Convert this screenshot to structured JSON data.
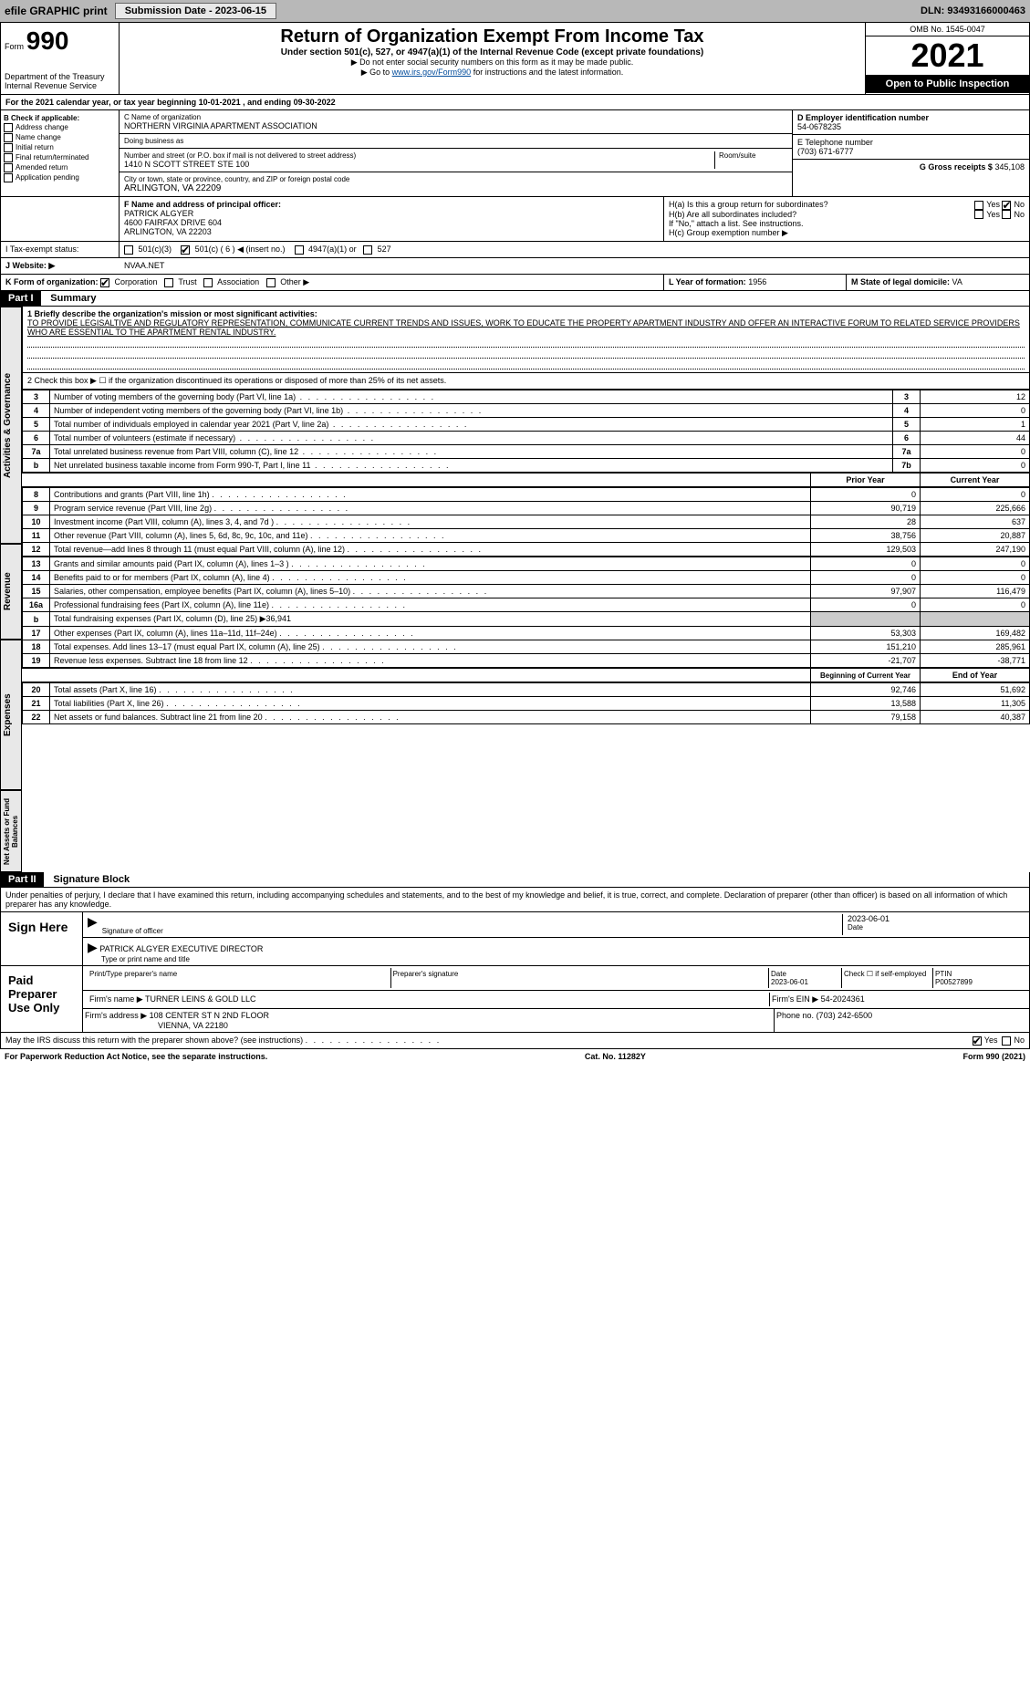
{
  "topbar": {
    "efile": "efile GRAPHIC print",
    "submission_label": "Submission Date - 2023-06-15",
    "dln": "DLN: 93493166000463"
  },
  "header": {
    "form_prefix": "Form",
    "form_number": "990",
    "title": "Return of Organization Exempt From Income Tax",
    "subtitle": "Under section 501(c), 527, or 4947(a)(1) of the Internal Revenue Code (except private foundations)",
    "note1": "▶ Do not enter social security numbers on this form as it may be made public.",
    "note2_prefix": "▶ Go to ",
    "note2_link": "www.irs.gov/Form990",
    "note2_suffix": " for instructions and the latest information.",
    "dept": "Department of the Treasury",
    "irs": "Internal Revenue Service",
    "omb": "OMB No. 1545-0047",
    "year": "2021",
    "open": "Open to Public Inspection"
  },
  "line_a": "For the 2021 calendar year, or tax year beginning 10-01-2021    , and ending 09-30-2022",
  "block_b": {
    "header": "B Check if applicable:",
    "items": [
      "Address change",
      "Name change",
      "Initial return",
      "Final return/terminated",
      "Amended return",
      "Application pending"
    ]
  },
  "block_c": {
    "name_label": "C Name of organization",
    "name": "NORTHERN VIRGINIA APARTMENT ASSOCIATION",
    "dba_label": "Doing business as",
    "dba": "",
    "addr_label": "Number and street (or P.O. box if mail is not delivered to street address)",
    "room_label": "Room/suite",
    "addr": "1410 N SCOTT STREET STE 100",
    "city_label": "City or town, state or province, country, and ZIP or foreign postal code",
    "city": "ARLINGTON, VA  22209"
  },
  "block_d": {
    "label": "D Employer identification number",
    "value": "54-0678235"
  },
  "block_e": {
    "label": "E Telephone number",
    "value": "(703) 671-6777"
  },
  "block_g": {
    "label": "G Gross receipts $",
    "value": "345,108"
  },
  "block_f": {
    "label": "F Name and address of principal officer:",
    "name": "PATRICK ALGYER",
    "addr1": "4600 FAIRFAX DRIVE 604",
    "addr2": "ARLINGTON, VA  22203"
  },
  "block_h": {
    "a_label": "H(a)  Is this a group return for subordinates?",
    "yes": "Yes",
    "no": "No",
    "b_label": "H(b)  Are all subordinates included?",
    "b_note": "If \"No,\" attach a list. See instructions.",
    "c_label": "H(c)  Group exemption number ▶"
  },
  "line_i": {
    "label": "I   Tax-exempt status:",
    "opts": [
      "501(c)(3)",
      "501(c) ( 6 ) ◀ (insert no.)",
      "4947(a)(1) or",
      "527"
    ]
  },
  "line_j": {
    "label": "J   Website: ▶",
    "value": "NVAA.NET"
  },
  "line_k": {
    "label": "K Form of organization:",
    "opts": [
      "Corporation",
      "Trust",
      "Association",
      "Other ▶"
    ]
  },
  "line_l": {
    "label": "L Year of formation:",
    "value": "1956"
  },
  "line_m": {
    "label": "M State of legal domicile:",
    "value": "VA"
  },
  "part1": {
    "header": "Part I",
    "title": "Summary",
    "q1_label": "1  Briefly describe the organization's mission or most significant activities:",
    "q1_text": "TO PROVIDE LEGISALTIVE AND REGULATORY REPRESENTATION, COMMUNICATE CURRENT TRENDS AND ISSUES, WORK TO EDUCATE THE PROPERTY APARTMENT INDUSTRY AND OFFER AN INTERACTIVE FORUM TO RELATED SERVICE PROVIDERS WHO ARE ESSENTIAL TO THE APARTMENT RENTAL INDUSTRY.",
    "q2": "2   Check this box ▶ ☐  if the organization discontinued its operations or disposed of more than 25% of its net assets.",
    "sections": {
      "gov_label": "Activities & Governance",
      "rev_label": "Revenue",
      "exp_label": "Expenses",
      "net_label": "Net Assets or Fund Balances"
    },
    "rows_top": [
      {
        "n": "3",
        "text": "Number of voting members of the governing body (Part VI, line 1a)",
        "box": "3",
        "val": "12"
      },
      {
        "n": "4",
        "text": "Number of independent voting members of the governing body (Part VI, line 1b)",
        "box": "4",
        "val": "0"
      },
      {
        "n": "5",
        "text": "Total number of individuals employed in calendar year 2021 (Part V, line 2a)",
        "box": "5",
        "val": "1"
      },
      {
        "n": "6",
        "text": "Total number of volunteers (estimate if necessary)",
        "box": "6",
        "val": "44"
      },
      {
        "n": "7a",
        "text": "Total unrelated business revenue from Part VIII, column (C), line 12",
        "box": "7a",
        "val": "0"
      },
      {
        "n": "b",
        "text": "Net unrelated business taxable income from Form 990-T, Part I, line 11",
        "box": "7b",
        "val": "0"
      }
    ],
    "year_headers": {
      "prior": "Prior Year",
      "current": "Current Year"
    },
    "rows_rev": [
      {
        "n": "8",
        "text": "Contributions and grants (Part VIII, line 1h)",
        "p": "0",
        "c": "0"
      },
      {
        "n": "9",
        "text": "Program service revenue (Part VIII, line 2g)",
        "p": "90,719",
        "c": "225,666"
      },
      {
        "n": "10",
        "text": "Investment income (Part VIII, column (A), lines 3, 4, and 7d )",
        "p": "28",
        "c": "637"
      },
      {
        "n": "11",
        "text": "Other revenue (Part VIII, column (A), lines 5, 6d, 8c, 9c, 10c, and 11e)",
        "p": "38,756",
        "c": "20,887"
      },
      {
        "n": "12",
        "text": "Total revenue—add lines 8 through 11 (must equal Part VIII, column (A), line 12)",
        "p": "129,503",
        "c": "247,190"
      }
    ],
    "rows_exp": [
      {
        "n": "13",
        "text": "Grants and similar amounts paid (Part IX, column (A), lines 1–3 )",
        "p": "0",
        "c": "0"
      },
      {
        "n": "14",
        "text": "Benefits paid to or for members (Part IX, column (A), line 4)",
        "p": "0",
        "c": "0"
      },
      {
        "n": "15",
        "text": "Salaries, other compensation, employee benefits (Part IX, column (A), lines 5–10)",
        "p": "97,907",
        "c": "116,479"
      },
      {
        "n": "16a",
        "text": "Professional fundraising fees (Part IX, column (A), line 11e)",
        "p": "0",
        "c": "0"
      },
      {
        "n": "b",
        "text": "Total fundraising expenses (Part IX, column (D), line 25) ▶36,941",
        "p": "",
        "c": "",
        "shade": true
      },
      {
        "n": "17",
        "text": "Other expenses (Part IX, column (A), lines 11a–11d, 11f–24e)",
        "p": "53,303",
        "c": "169,482"
      },
      {
        "n": "18",
        "text": "Total expenses. Add lines 13–17 (must equal Part IX, column (A), line 25)",
        "p": "151,210",
        "c": "285,961"
      },
      {
        "n": "19",
        "text": "Revenue less expenses. Subtract line 18 from line 12",
        "p": "-21,707",
        "c": "-38,771"
      }
    ],
    "net_headers": {
      "begin": "Beginning of Current Year",
      "end": "End of Year"
    },
    "rows_net": [
      {
        "n": "20",
        "text": "Total assets (Part X, line 16)",
        "p": "92,746",
        "c": "51,692"
      },
      {
        "n": "21",
        "text": "Total liabilities (Part X, line 26)",
        "p": "13,588",
        "c": "11,305"
      },
      {
        "n": "22",
        "text": "Net assets or fund balances. Subtract line 21 from line 20",
        "p": "79,158",
        "c": "40,387"
      }
    ]
  },
  "part2": {
    "header": "Part II",
    "title": "Signature Block",
    "declaration": "Under penalties of perjury, I declare that I have examined this return, including accompanying schedules and statements, and to the best of my knowledge and belief, it is true, correct, and complete. Declaration of preparer (other than officer) is based on all information of which preparer has any knowledge.",
    "sign_here": "Sign Here",
    "sig_officer": "Signature of officer",
    "sig_date": "Date",
    "sig_date_val": "2023-06-01",
    "officer_name": "PATRICK ALGYER  EXECUTIVE DIRECTOR",
    "officer_label": "Type or print name and title",
    "paid_prep": "Paid Preparer Use Only",
    "prep_name_label": "Print/Type preparer's name",
    "prep_sig_label": "Preparer's signature",
    "prep_date_label": "Date",
    "prep_date": "2023-06-01",
    "prep_check": "Check ☐ if self-employed",
    "ptin_label": "PTIN",
    "ptin": "P00527899",
    "firm_name_label": "Firm's name    ▶",
    "firm_name": "TURNER LEINS & GOLD LLC",
    "firm_ein_label": "Firm's EIN ▶",
    "firm_ein": "54-2024361",
    "firm_addr_label": "Firm's address ▶",
    "firm_addr1": "108 CENTER ST N 2ND FLOOR",
    "firm_addr2": "VIENNA, VA  22180",
    "phone_label": "Phone no.",
    "phone": "(703) 242-6500",
    "discuss": "May the IRS discuss this return with the preparer shown above? (see instructions)",
    "discuss_yes": "Yes",
    "discuss_no": "No"
  },
  "footer": {
    "left": "For Paperwork Reduction Act Notice, see the separate instructions.",
    "mid": "Cat. No. 11282Y",
    "right": "Form 990 (2021)"
  }
}
